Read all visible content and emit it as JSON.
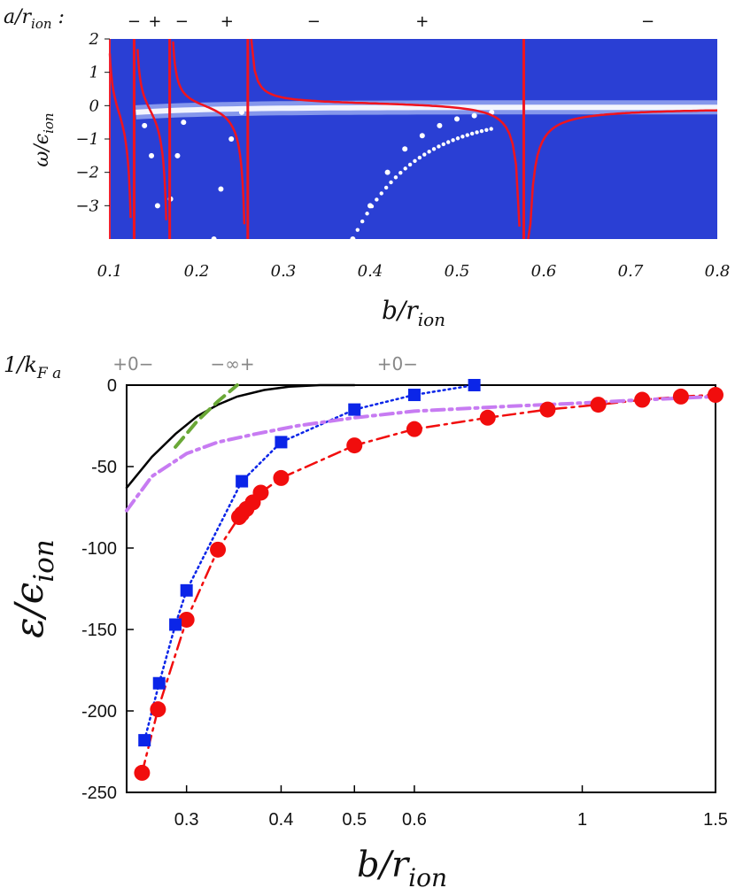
{
  "chart_data": [
    {
      "type": "heatmap",
      "xlabel": "b/r_ion",
      "ylabel": "ω/ϵ_ion",
      "xlim": [
        0.1,
        0.8
      ],
      "ylim": [
        -4,
        2
      ],
      "xticks": [
        "0.1",
        "0.2",
        "0.3",
        "0.4",
        "0.5",
        "0.6",
        "0.7",
        "0.8"
      ],
      "yticks": [
        "2",
        "1",
        "0",
        "−1",
        "−2",
        "−3"
      ],
      "top_axis_label": "a/r_ion :",
      "sign_markers": [
        {
          "b": 0.128,
          "sign": "−"
        },
        {
          "b": 0.152,
          "sign": "+"
        },
        {
          "b": 0.183,
          "sign": "−"
        },
        {
          "b": 0.235,
          "sign": "+"
        },
        {
          "b": 0.335,
          "sign": "−"
        },
        {
          "b": 0.46,
          "sign": "+"
        },
        {
          "b": 0.72,
          "sign": "−"
        }
      ],
      "resonance_poles": [
        0.128,
        0.169,
        0.259,
        0.577
      ],
      "series": [
        {
          "name": "white-dots",
          "x": [
            0.14,
            0.148,
            0.155,
            0.17,
            0.178,
            0.185,
            0.22,
            0.228,
            0.24,
            0.252,
            0.38,
            0.4,
            0.42,
            0.44,
            0.46,
            0.48,
            0.5,
            0.52,
            0.54
          ],
          "y": [
            -0.6,
            -1.5,
            -3.0,
            -2.8,
            -1.5,
            -0.5,
            -4.0,
            -2.5,
            -1.0,
            -0.2,
            -4.0,
            -3.0,
            -2.0,
            -1.3,
            -0.9,
            -0.6,
            -0.4,
            -0.3,
            -0.2
          ]
        }
      ]
    },
    {
      "type": "line",
      "xlabel": "b/r_ion",
      "ylabel": "ε/ϵ_ion",
      "xscale": "log",
      "xlim": [
        0.25,
        1.5
      ],
      "ylim": [
        -250,
        0
      ],
      "xticks": [
        "0.3",
        "0.4",
        "0.5",
        "0.6",
        "1",
        "1.5"
      ],
      "xtick_values": [
        0.3,
        0.4,
        0.5,
        0.6,
        1.0,
        1.5
      ],
      "yticks": [
        "0",
        "-50",
        "-100",
        "-150",
        "-200",
        "-250"
      ],
      "ytick_values": [
        0,
        -50,
        -100,
        -150,
        -200,
        -250
      ],
      "top_axis_label": "1/k_F a",
      "top_markers": [
        {
          "b": 0.255,
          "text": "+0−"
        },
        {
          "b": 0.345,
          "text": "−∞+"
        },
        {
          "b": 0.57,
          "text": "+0−"
        }
      ],
      "series": [
        {
          "name": "red-circles",
          "color": "#f10d0d",
          "marker": "circle",
          "line": "dashdot",
          "x": [
            0.262,
            0.275,
            0.3,
            0.33,
            0.352,
            0.355,
            0.36,
            0.367,
            0.376,
            0.4,
            0.5,
            0.6,
            0.75,
            0.9,
            1.05,
            1.2,
            1.35,
            1.5
          ],
          "y": [
            -238,
            -199,
            -144,
            -101,
            -81,
            -79,
            -76,
            -72,
            -66,
            -57,
            -37,
            -27,
            -20,
            -15,
            -12,
            -9,
            -7,
            -6
          ]
        },
        {
          "name": "blue-squares",
          "color": "#0b25e8",
          "marker": "square",
          "line": "dotted",
          "x": [
            0.264,
            0.276,
            0.29,
            0.3,
            0.355,
            0.4,
            0.5,
            0.6,
            0.72
          ],
          "y": [
            -218,
            -183,
            -147,
            -126,
            -59,
            -35,
            -15,
            -6,
            0
          ]
        },
        {
          "name": "black-solid",
          "color": "#000000",
          "line": "solid",
          "x": [
            0.25,
            0.27,
            0.29,
            0.31,
            0.33,
            0.35,
            0.38,
            0.41,
            0.45,
            0.5
          ],
          "y": [
            -63,
            -44,
            -30,
            -19,
            -12,
            -7,
            -3,
            -1,
            0,
            0
          ]
        },
        {
          "name": "green-dashed",
          "color": "#6aa837",
          "line": "dashed",
          "x": [
            0.29,
            0.31,
            0.33,
            0.35
          ],
          "y": [
            -38,
            -22,
            -10,
            0
          ]
        },
        {
          "name": "purple-dashdot",
          "color": "#c77bf2",
          "line": "dashdot",
          "x": [
            0.25,
            0.27,
            0.3,
            0.33,
            0.37,
            0.42,
            0.5,
            0.6,
            0.8,
            1.0,
            1.2,
            1.5
          ],
          "y": [
            -77,
            -56,
            -42,
            -35,
            -30,
            -25,
            -20,
            -16,
            -13,
            -11,
            -9,
            -7
          ]
        }
      ]
    }
  ]
}
